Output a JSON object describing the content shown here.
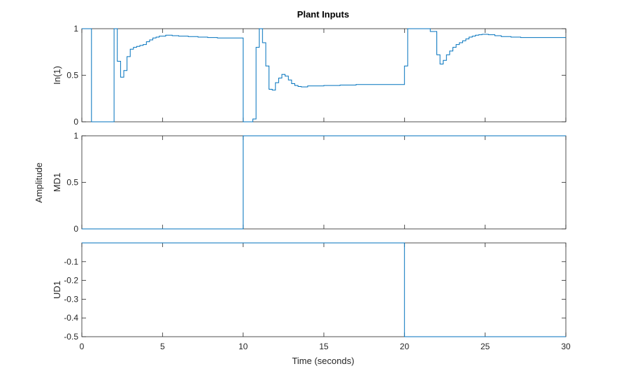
{
  "chart_data": {
    "type": "line",
    "title": "Plant Inputs",
    "xlabel": "Time (seconds)",
    "shared_ylabel": "Amplitude",
    "line_style": "stairs",
    "line_color": "#0072BD",
    "xlim": [
      0,
      30
    ],
    "xticks": [
      0,
      5,
      10,
      15,
      20,
      25,
      30
    ],
    "grid": false,
    "subplots": [
      {
        "name": "In(1)",
        "ylabel": "In(1)",
        "ylim": [
          0,
          1
        ],
        "yticks": [
          0,
          0.5,
          1
        ],
        "yticklabels": [
          "0",
          "0.5",
          "1"
        ],
        "x": [
          0,
          0.6,
          2.0,
          2.2,
          2.4,
          2.6,
          2.8,
          3.0,
          3.2,
          3.4,
          3.6,
          3.8,
          4.0,
          4.2,
          4.4,
          4.6,
          4.8,
          5.2,
          5.6,
          6.0,
          6.6,
          7.2,
          7.8,
          8.4,
          9.0,
          10.0,
          10.6,
          10.8,
          11.0,
          11.2,
          11.4,
          11.6,
          11.8,
          12.0,
          12.2,
          12.4,
          12.6,
          12.8,
          13.0,
          13.2,
          13.4,
          13.6,
          14.0,
          15.0,
          16.0,
          17.0,
          18.0,
          19.0,
          20.0,
          20.2,
          21.6,
          22.0,
          22.2,
          22.4,
          22.6,
          22.8,
          23.0,
          23.2,
          23.4,
          23.6,
          23.8,
          24.0,
          24.2,
          24.4,
          24.6,
          24.8,
          25.2,
          25.6,
          26.0,
          26.6,
          27.2,
          27.8,
          28.4,
          29.0,
          30.0
        ],
        "y": [
          1.0,
          0.0,
          1.0,
          0.65,
          0.48,
          0.55,
          0.7,
          0.78,
          0.8,
          0.81,
          0.82,
          0.83,
          0.86,
          0.88,
          0.9,
          0.91,
          0.92,
          0.93,
          0.925,
          0.92,
          0.915,
          0.91,
          0.905,
          0.9,
          0.9,
          0.0,
          0.03,
          0.8,
          1.0,
          0.85,
          0.6,
          0.35,
          0.34,
          0.42,
          0.47,
          0.51,
          0.49,
          0.45,
          0.41,
          0.39,
          0.38,
          0.375,
          0.385,
          0.39,
          0.395,
          0.4,
          0.4,
          0.4,
          0.6,
          1.0,
          0.97,
          0.72,
          0.62,
          0.66,
          0.72,
          0.76,
          0.8,
          0.83,
          0.85,
          0.87,
          0.89,
          0.91,
          0.92,
          0.93,
          0.935,
          0.94,
          0.935,
          0.925,
          0.915,
          0.91,
          0.905,
          0.905,
          0.905,
          0.905,
          0.905
        ]
      },
      {
        "name": "MD1",
        "ylabel": "MD1",
        "ylim": [
          0,
          1
        ],
        "yticks": [
          0,
          0.5,
          1
        ],
        "yticklabels": [
          "0",
          "0.5",
          "1"
        ],
        "x": [
          0,
          10,
          30
        ],
        "y": [
          0,
          1,
          1
        ]
      },
      {
        "name": "UD1",
        "ylabel": "UD1",
        "ylim": [
          -0.5,
          0
        ],
        "yticks": [
          -0.5,
          -0.4,
          -0.3,
          -0.2,
          -0.1
        ],
        "yticklabels": [
          "-0.5",
          "-0.4",
          "-0.3",
          "-0.2",
          "-0.1"
        ],
        "x": [
          0,
          20,
          30
        ],
        "y": [
          0,
          -0.5,
          -0.5
        ]
      }
    ]
  }
}
